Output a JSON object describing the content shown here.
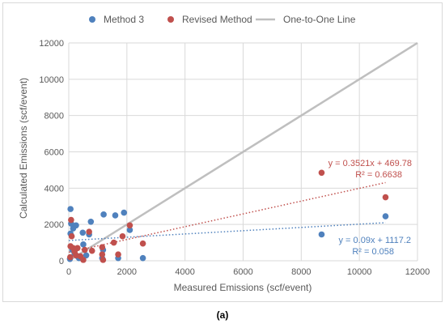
{
  "chart_data": {
    "type": "scatter",
    "xlabel": "Measured  Emissions (scf/event)",
    "ylabel": "Calculated Emissions (scf/event)",
    "xlim": [
      0,
      12000
    ],
    "ylim": [
      0,
      12000
    ],
    "x_ticks": [
      "0",
      "2000",
      "4000",
      "6000",
      "8000",
      "10000",
      "12000"
    ],
    "y_ticks": [
      "0",
      "2000",
      "4000",
      "6000",
      "8000",
      "10000",
      "12000"
    ],
    "grid": true,
    "legend_position": "top",
    "series": [
      {
        "name": "Method 3",
        "color": "#4f81bd",
        "marker": "circle",
        "points": [
          [
            60,
            2850
          ],
          [
            80,
            2050
          ],
          [
            150,
            1780
          ],
          [
            250,
            1950
          ],
          [
            60,
            1500
          ],
          [
            120,
            600
          ],
          [
            200,
            400
          ],
          [
            300,
            250
          ],
          [
            350,
            150
          ],
          [
            40,
            100
          ],
          [
            480,
            1550
          ],
          [
            500,
            900
          ],
          [
            700,
            1450
          ],
          [
            760,
            2150
          ],
          [
            600,
            300
          ],
          [
            1200,
            2550
          ],
          [
            1180,
            600
          ],
          [
            1150,
            150
          ],
          [
            1600,
            2500
          ],
          [
            1700,
            150
          ],
          [
            1900,
            2650
          ],
          [
            2100,
            1700
          ],
          [
            2550,
            150
          ],
          [
            8700,
            1450
          ],
          [
            10900,
            2450
          ]
        ],
        "trendline": {
          "slope": 0.09,
          "intercept": 1117.2,
          "x_range": [
            0,
            10900
          ],
          "equation": "y = 0.09x + 1117.2",
          "r2": "R² = 0.058"
        }
      },
      {
        "name": "Revised Method",
        "color": "#c0504d",
        "marker": "circle",
        "points": [
          [
            80,
            2250
          ],
          [
            100,
            1350
          ],
          [
            60,
            800
          ],
          [
            150,
            700
          ],
          [
            200,
            500
          ],
          [
            250,
            300
          ],
          [
            300,
            700
          ],
          [
            50,
            200
          ],
          [
            400,
            250
          ],
          [
            500,
            50
          ],
          [
            550,
            600
          ],
          [
            700,
            1600
          ],
          [
            800,
            550
          ],
          [
            1150,
            750
          ],
          [
            1150,
            350
          ],
          [
            1180,
            50
          ],
          [
            1550,
            1000
          ],
          [
            1700,
            350
          ],
          [
            1850,
            1350
          ],
          [
            2100,
            1950
          ],
          [
            2550,
            950
          ],
          [
            8700,
            4850
          ],
          [
            10900,
            3500
          ]
        ],
        "trendline": {
          "slope": 0.3521,
          "intercept": 469.78,
          "x_range": [
            0,
            10900
          ],
          "equation": "y = 0.3521x + 469.78",
          "r2": "R² = 0.6638"
        }
      },
      {
        "name": "One-to-One Line",
        "color": "#bfbfbf",
        "type": "line",
        "points": [
          [
            0,
            0
          ],
          [
            12000,
            12000
          ]
        ]
      }
    ]
  },
  "caption": "(a)"
}
